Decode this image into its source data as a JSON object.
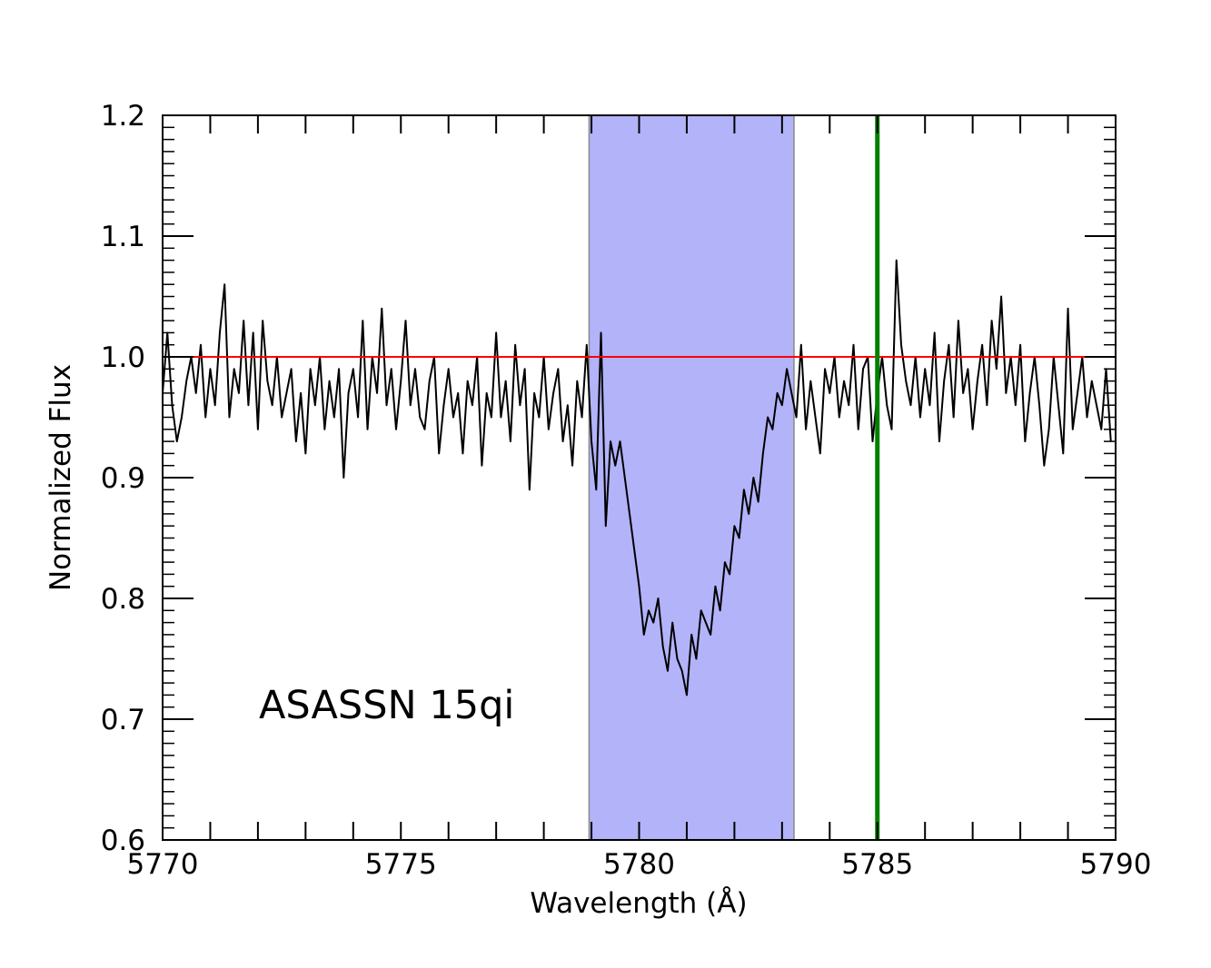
{
  "chart_data": {
    "type": "line",
    "annotation": "ASASSN 15qi",
    "xlabel": "Wavelength (Å)",
    "ylabel": "Normalized Flux",
    "xlim": [
      5770,
      5790
    ],
    "ylim": [
      0.6,
      1.2
    ],
    "xticks": [
      5770,
      5775,
      5780,
      5785,
      5790
    ],
    "yticks": [
      0.6,
      0.7,
      0.8,
      0.9,
      {
        "value": 1.0,
        "label": "1.0"
      },
      1.1,
      1.2
    ],
    "xminorticks": [
      5771,
      5772,
      5773,
      5774,
      5776,
      5777,
      5778,
      5779,
      5781,
      5782,
      5783,
      5784,
      5786,
      5787,
      5788,
      5789
    ],
    "yminorticks": [
      0.61,
      0.62,
      0.63,
      0.64,
      0.65,
      0.66,
      0.67,
      0.68,
      0.69,
      0.71,
      0.72,
      0.73,
      0.74,
      0.75,
      0.76,
      0.77,
      0.78,
      0.79,
      0.81,
      0.82,
      0.83,
      0.84,
      0.85,
      0.86,
      0.87,
      0.88,
      0.89,
      0.91,
      0.92,
      0.93,
      0.94,
      0.95,
      0.96,
      0.97,
      0.98,
      0.99,
      1.01,
      1.02,
      1.03,
      1.04,
      1.05,
      1.06,
      1.07,
      1.08,
      1.09,
      1.11,
      1.12,
      1.13,
      1.14,
      1.15,
      1.16,
      1.17,
      1.18,
      1.19
    ],
    "shaded_region": {
      "xmin": 5778.95,
      "xmax": 5783.25,
      "color": "#b3b3fa"
    },
    "vline": {
      "x": 5785.0,
      "color": "#008000"
    },
    "hline": {
      "y": 1.0,
      "color": "#ff0000"
    },
    "x": [
      5770.0,
      5770.1,
      5770.2,
      5770.3,
      5770.4,
      5770.5,
      5770.6,
      5770.7,
      5770.8,
      5770.9,
      5771.0,
      5771.1,
      5771.2,
      5771.3,
      5771.4,
      5771.5,
      5771.6,
      5771.7,
      5771.8,
      5771.9,
      5772.0,
      5772.1,
      5772.2,
      5772.3,
      5772.4,
      5772.5,
      5772.6,
      5772.7,
      5772.8,
      5772.9,
      5773.0,
      5773.1,
      5773.2,
      5773.3,
      5773.4,
      5773.5,
      5773.6,
      5773.7,
      5773.8,
      5773.9,
      5774.0,
      5774.1,
      5774.2,
      5774.3,
      5774.4,
      5774.5,
      5774.6,
      5774.7,
      5774.8,
      5774.9,
      5775.0,
      5775.1,
      5775.2,
      5775.3,
      5775.4,
      5775.5,
      5775.6,
      5775.7,
      5775.8,
      5775.9,
      5776.0,
      5776.1,
      5776.2,
      5776.3,
      5776.4,
      5776.5,
      5776.6,
      5776.7,
      5776.8,
      5776.9,
      5777.0,
      5777.1,
      5777.2,
      5777.3,
      5777.4,
      5777.5,
      5777.6,
      5777.7,
      5777.8,
      5777.9,
      5778.0,
      5778.1,
      5778.2,
      5778.3,
      5778.4,
      5778.5,
      5778.6,
      5778.7,
      5778.8,
      5778.9,
      5779.0,
      5779.1,
      5779.2,
      5779.3,
      5779.4,
      5779.5,
      5779.6,
      5779.7,
      5779.8,
      5779.9,
      5780.0,
      5780.1,
      5780.2,
      5780.3,
      5780.4,
      5780.5,
      5780.6,
      5780.7,
      5780.8,
      5780.9,
      5781.0,
      5781.1,
      5781.2,
      5781.3,
      5781.4,
      5781.5,
      5781.6,
      5781.7,
      5781.8,
      5781.9,
      5782.0,
      5782.1,
      5782.2,
      5782.3,
      5782.4,
      5782.5,
      5782.6,
      5782.7,
      5782.8,
      5782.9,
      5783.0,
      5783.1,
      5783.2,
      5783.3,
      5783.4,
      5783.5,
      5783.6,
      5783.7,
      5783.8,
      5783.9,
      5784.0,
      5784.1,
      5784.2,
      5784.3,
      5784.4,
      5784.5,
      5784.6,
      5784.7,
      5784.8,
      5784.9,
      5785.0,
      5785.1,
      5785.2,
      5785.3,
      5785.4,
      5785.5,
      5785.6,
      5785.7,
      5785.8,
      5785.9,
      5786.0,
      5786.1,
      5786.2,
      5786.3,
      5786.4,
      5786.5,
      5786.6,
      5786.7,
      5786.8,
      5786.9,
      5787.0,
      5787.1,
      5787.2,
      5787.3,
      5787.4,
      5787.5,
      5787.6,
      5787.7,
      5787.8,
      5787.9,
      5788.0,
      5788.1,
      5788.2,
      5788.3,
      5788.4,
      5788.5,
      5788.6,
      5788.7,
      5788.8,
      5788.9,
      5789.0,
      5789.1,
      5789.2,
      5789.3,
      5789.4,
      5789.5,
      5789.6,
      5789.7,
      5789.8,
      5789.9
    ],
    "series": [
      {
        "color": "#000000",
        "values": [
          0.97,
          1.02,
          0.96,
          0.93,
          0.95,
          0.98,
          1.0,
          0.97,
          1.01,
          0.95,
          0.99,
          0.96,
          1.02,
          1.06,
          0.95,
          0.99,
          0.97,
          1.03,
          0.96,
          1.02,
          0.94,
          1.03,
          0.98,
          0.96,
          1.0,
          0.95,
          0.97,
          0.99,
          0.93,
          0.97,
          0.92,
          0.99,
          0.96,
          1.0,
          0.94,
          0.98,
          0.95,
          0.99,
          0.9,
          0.97,
          0.99,
          0.95,
          1.03,
          0.94,
          1.0,
          0.97,
          1.04,
          0.96,
          0.99,
          0.94,
          0.98,
          1.03,
          0.96,
          0.99,
          0.95,
          0.94,
          0.98,
          1.0,
          0.92,
          0.96,
          0.99,
          0.95,
          0.97,
          0.92,
          0.98,
          0.96,
          1.0,
          0.91,
          0.97,
          0.95,
          1.02,
          0.95,
          0.98,
          0.93,
          1.01,
          0.96,
          0.99,
          0.89,
          0.97,
          0.95,
          1.0,
          0.94,
          0.97,
          0.99,
          0.93,
          0.96,
          0.91,
          0.98,
          0.95,
          1.01,
          0.93,
          0.89,
          1.02,
          0.86,
          0.93,
          0.91,
          0.93,
          0.9,
          0.87,
          0.84,
          0.81,
          0.77,
          0.79,
          0.78,
          0.8,
          0.76,
          0.74,
          0.78,
          0.75,
          0.74,
          0.72,
          0.77,
          0.75,
          0.79,
          0.78,
          0.77,
          0.81,
          0.79,
          0.83,
          0.82,
          0.86,
          0.85,
          0.89,
          0.87,
          0.9,
          0.88,
          0.92,
          0.95,
          0.94,
          0.97,
          0.96,
          0.99,
          0.97,
          0.95,
          1.01,
          0.94,
          0.98,
          0.95,
          0.92,
          0.99,
          0.97,
          1.0,
          0.95,
          0.98,
          0.96,
          1.01,
          0.94,
          0.99,
          1.0,
          0.93,
          0.97,
          1.0,
          0.96,
          0.94,
          1.08,
          1.01,
          0.98,
          0.96,
          1.0,
          0.95,
          0.99,
          0.96,
          1.02,
          0.93,
          0.98,
          1.01,
          0.95,
          1.03,
          0.97,
          0.99,
          0.94,
          0.98,
          1.01,
          0.96,
          1.03,
          0.99,
          1.05,
          0.97,
          1.0,
          0.96,
          1.01,
          0.93,
          0.97,
          1.0,
          0.96,
          0.91,
          0.94,
          1.0,
          0.96,
          0.92,
          1.04,
          0.94,
          0.97,
          1.0,
          0.95,
          0.98,
          0.96,
          0.94,
          0.99,
          0.93
        ]
      }
    ]
  }
}
